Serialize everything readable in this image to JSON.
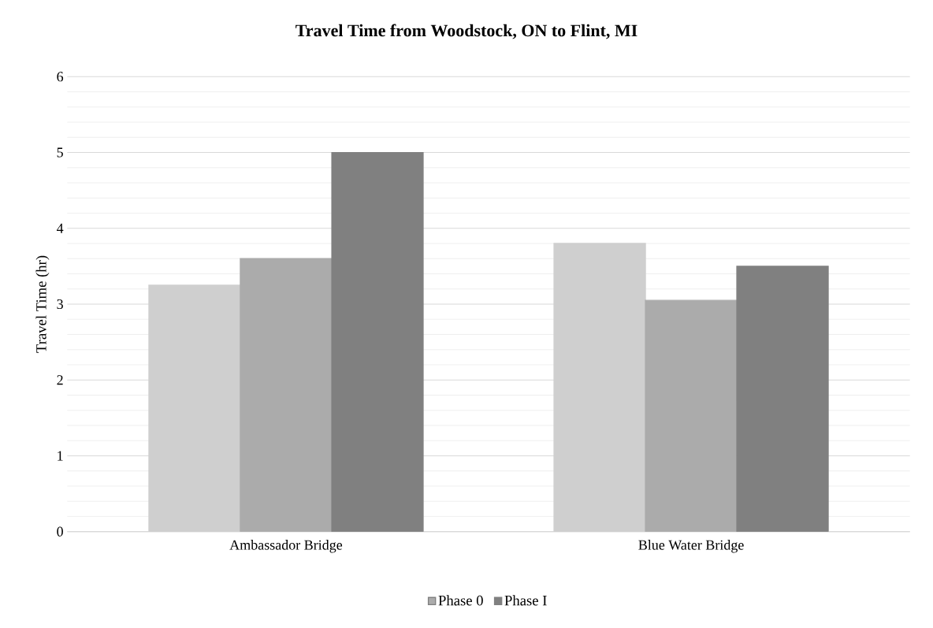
{
  "chart_data": {
    "type": "bar",
    "title": "Travel Time from Woodstock, ON to Flint, MI",
    "ylabel": "Travel Time (hr)",
    "categories": [
      "Ambassador Bridge",
      "Blue Water Bridge"
    ],
    "series": [
      {
        "color": "#cfcfcf",
        "values": [
          3.25,
          3.8
        ]
      },
      {
        "name": "Phase 0",
        "color": "#ababab",
        "values": [
          3.6,
          3.05
        ]
      },
      {
        "name": "Phase I",
        "color": "#808080",
        "values": [
          5.0,
          3.5
        ]
      }
    ],
    "ylim": [
      0,
      6
    ],
    "yticks": [
      0,
      1,
      2,
      3,
      4,
      5,
      6
    ],
    "grid": "y",
    "legend": "bottom"
  }
}
